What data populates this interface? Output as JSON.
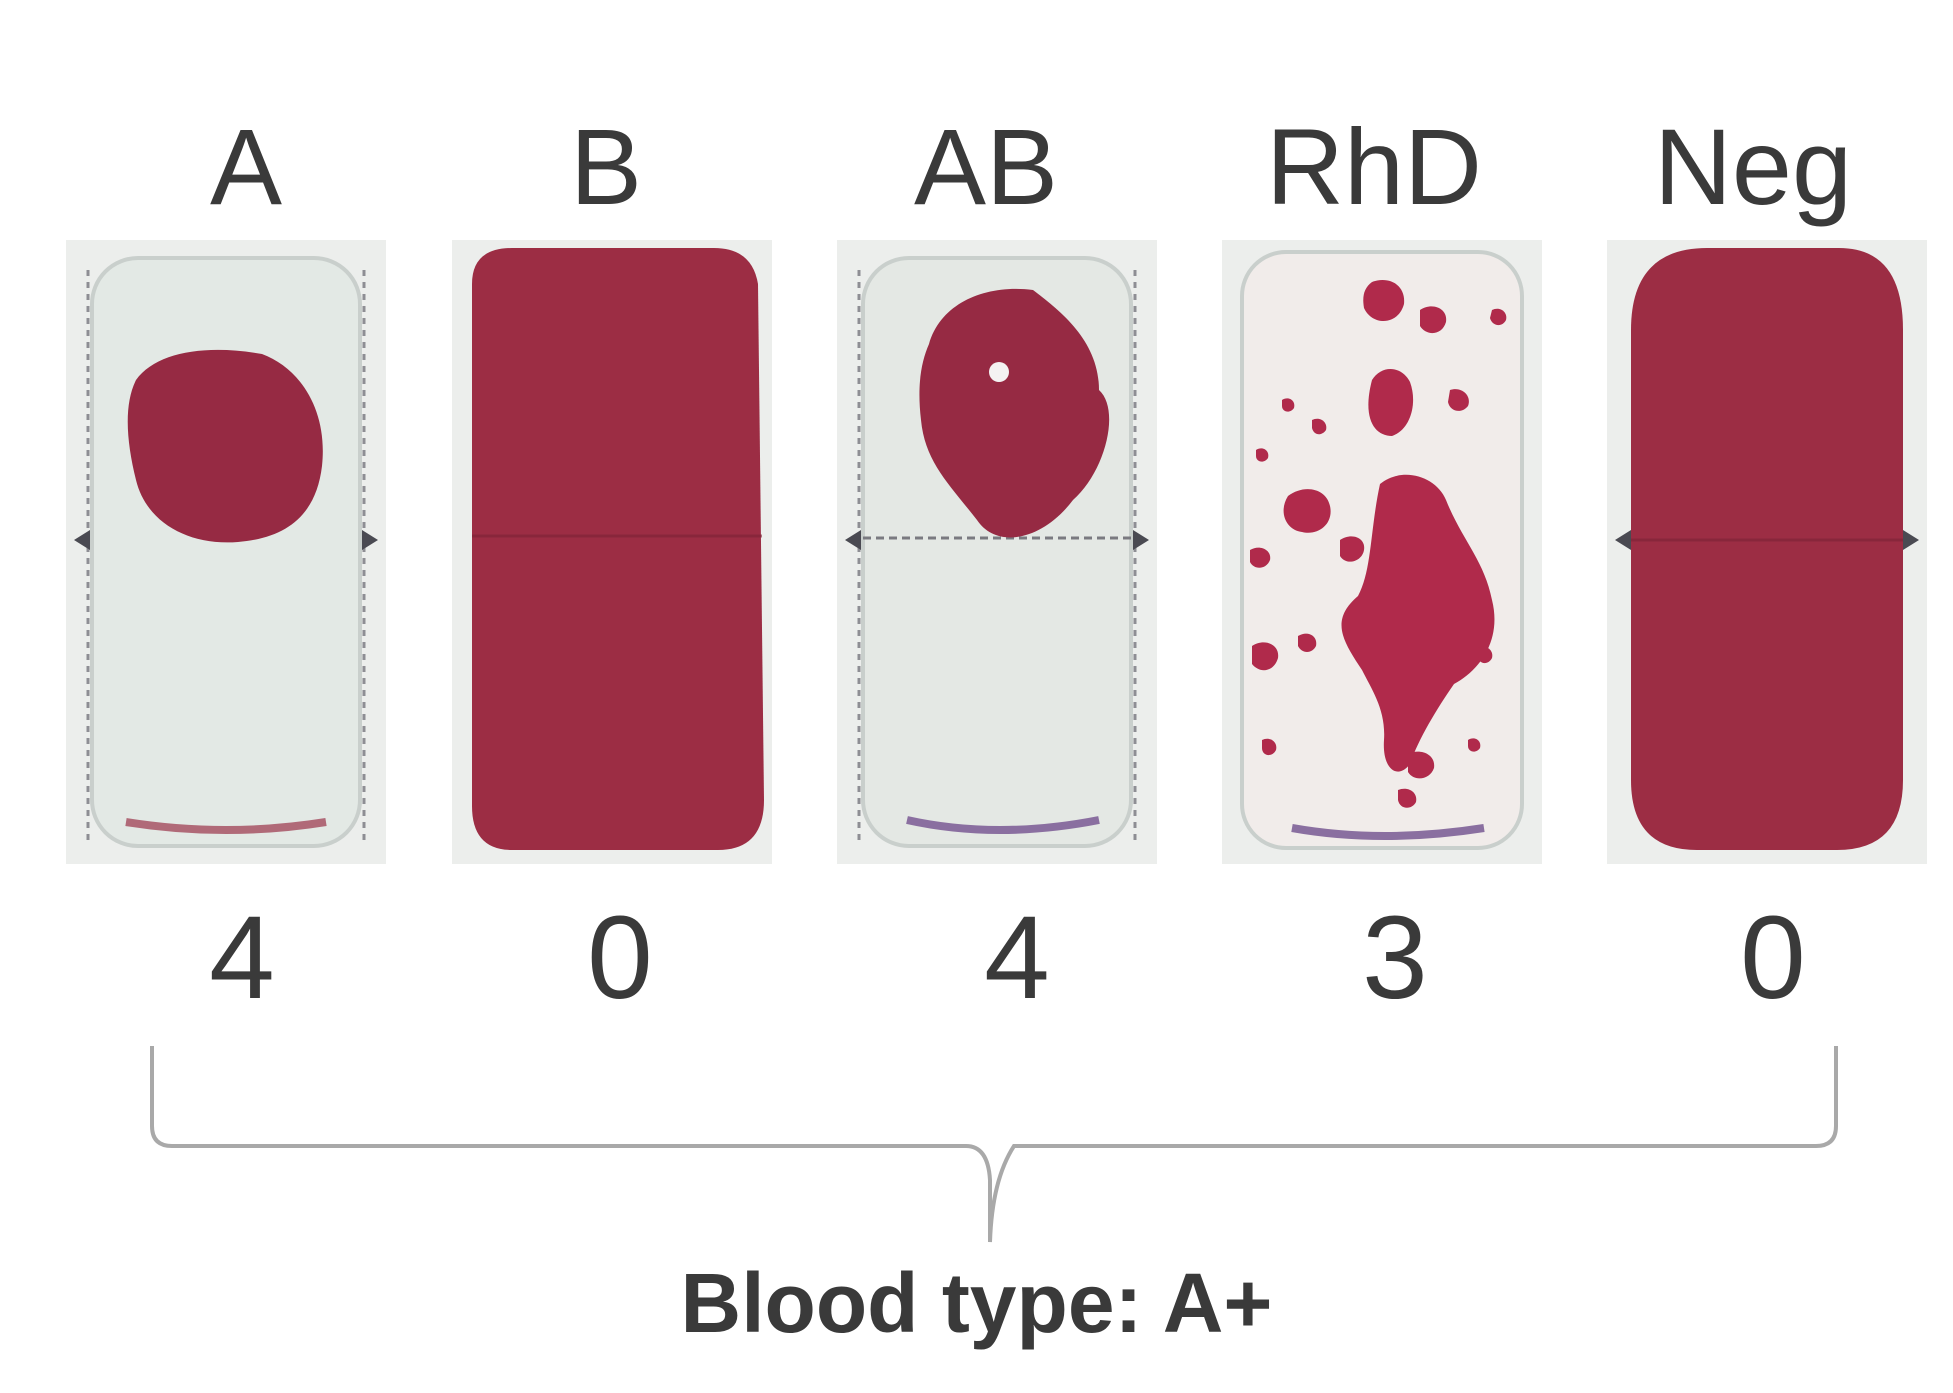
{
  "columns": [
    {
      "label": "A",
      "score": "4",
      "reaction": "agglutination"
    },
    {
      "label": "B",
      "score": "0",
      "reaction": "none"
    },
    {
      "label": "AB",
      "score": "4",
      "reaction": "agglutination"
    },
    {
      "label": "RhD",
      "score": "3",
      "reaction": "agglutination"
    },
    {
      "label": "Neg",
      "score": "0",
      "reaction": "none"
    }
  ],
  "result": "Blood type: A+",
  "colors": {
    "blood": "#9b2c41",
    "card_bg": "#e7ece7",
    "text": "#3a3a3a",
    "brace": "#a9a9a9"
  }
}
